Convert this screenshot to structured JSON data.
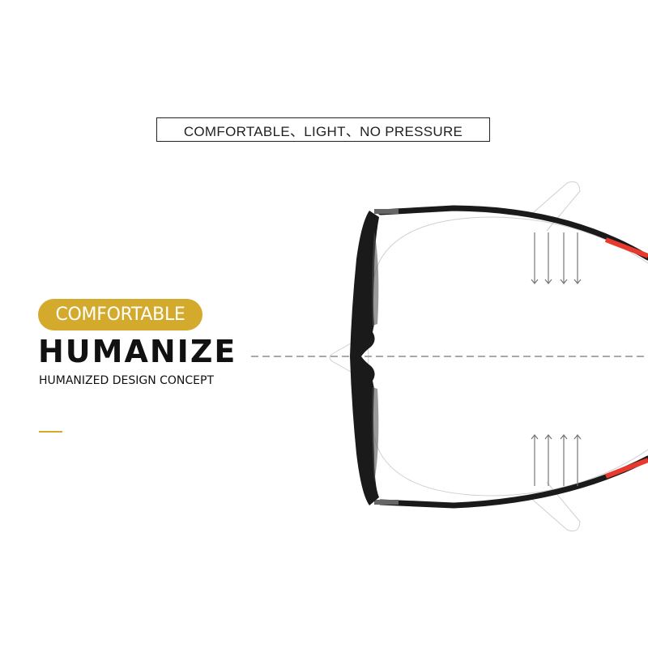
{
  "header": {
    "title": "COMFORTABLE、LIGHT、NO PRESSURE"
  },
  "feature": {
    "badge": "COMFORTABLE",
    "headline": "HUMANIZE",
    "subtitle": "HUMANIZED DESIGN CONCEPT"
  },
  "colors": {
    "accent": "#d4aa2c",
    "frame": "#1a1a1a",
    "temple_tip": "#e8392f",
    "guide_lines": "#c8c8c8",
    "arrows": "#777777"
  },
  "illustration": {
    "subject": "eyeglasses-top-view",
    "arrows_down": 4,
    "arrows_up": 4
  }
}
